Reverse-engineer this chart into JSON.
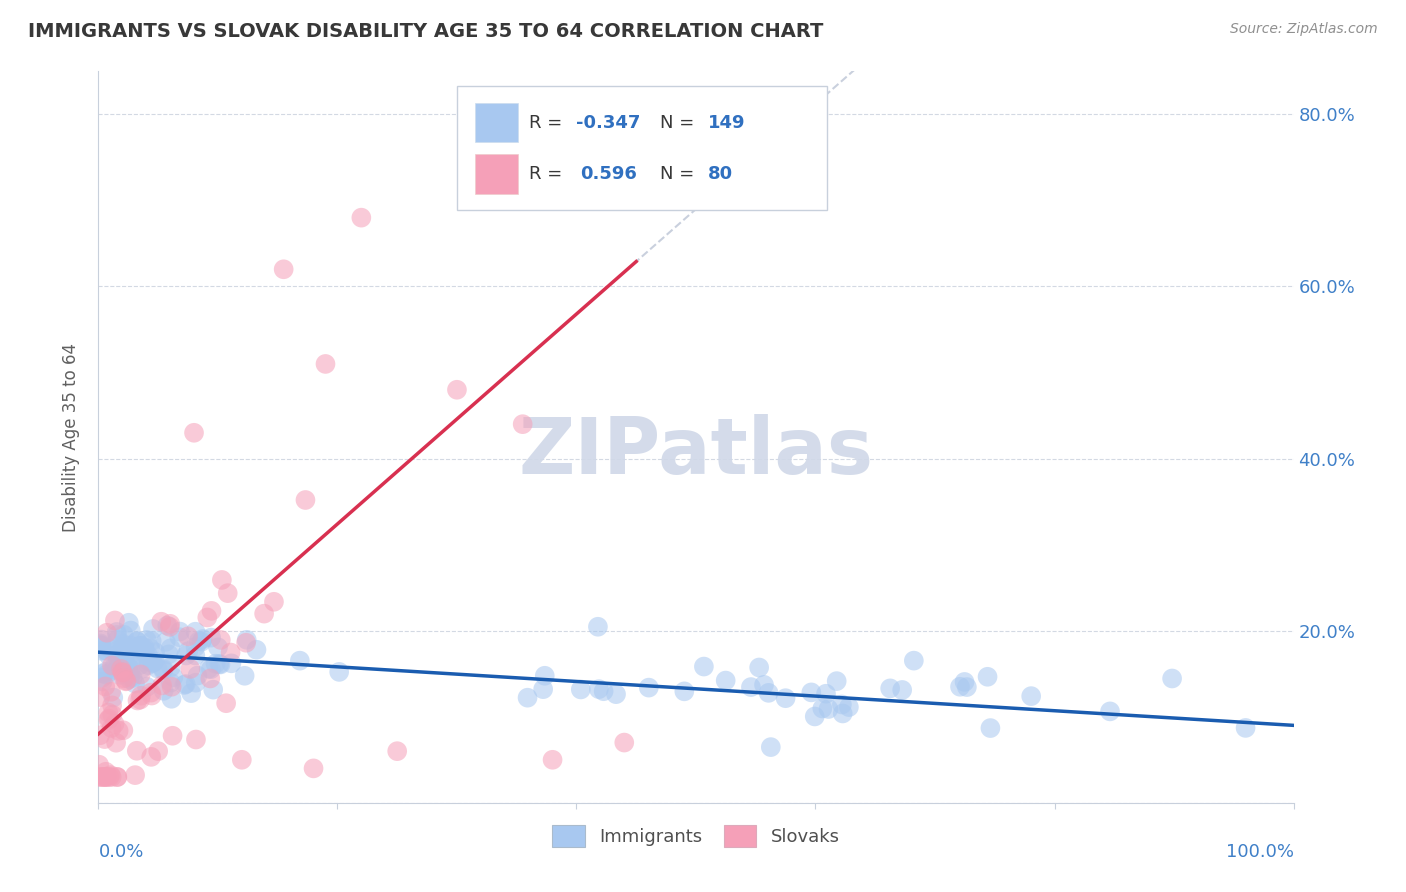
{
  "title": "IMMIGRANTS VS SLOVAK DISABILITY AGE 35 TO 64 CORRELATION CHART",
  "source": "Source: ZipAtlas.com",
  "ylabel": "Disability Age 35 to 64",
  "xmin": 0.0,
  "xmax": 1.0,
  "ymin": 0.0,
  "ymax": 0.85,
  "r_immigrants": -0.347,
  "n_immigrants": 149,
  "r_slovaks": 0.596,
  "n_slovaks": 80,
  "color_immigrants": "#A8C8F0",
  "color_slovaks": "#F5A0B8",
  "color_line_immigrants": "#1A5CB0",
  "color_line_slovaks": "#D83050",
  "color_dashed": "#C0C8D8",
  "background_color": "#FFFFFF",
  "title_color": "#383838",
  "source_color": "#909090",
  "legend_text_color": "#383838",
  "legend_val_color": "#3070C0",
  "watermark_color": "#D0D8E8",
  "watermark": "ZIPatlas",
  "imm_intercept": 0.175,
  "imm_slope": -0.085,
  "slo_intercept": 0.08,
  "slo_slope": 1.22
}
